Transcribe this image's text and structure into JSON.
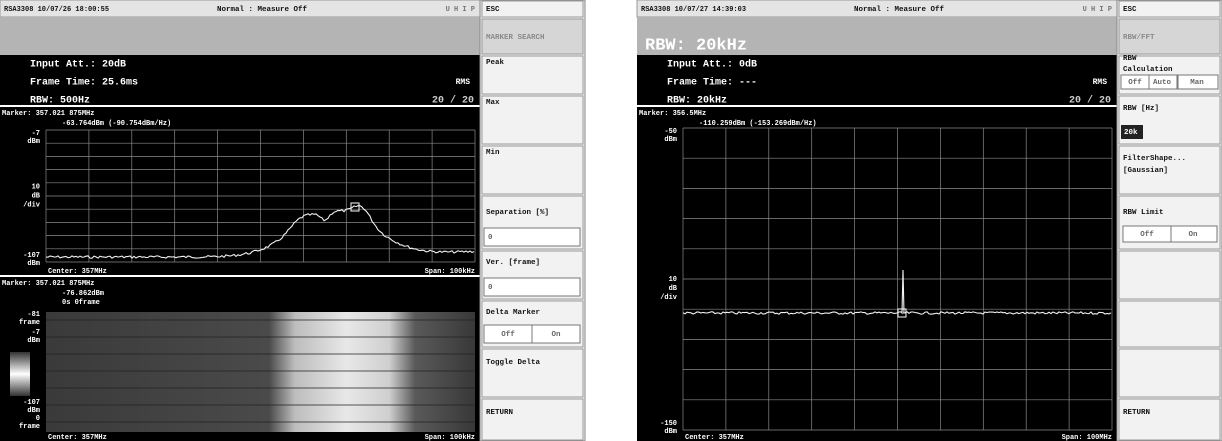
{
  "screens": [
    {
      "status": {
        "timestamp": "RSA3308 10/07/26 18:00:55",
        "mode": "Normal : Measure Off",
        "flags": "U H I P"
      },
      "info": {
        "input_att": "Input Att.: 20dB",
        "frame_time": "Frame Time: 25.6ms",
        "detector": "RMS",
        "rbw": "RBW: 500Hz",
        "count": "20 / 20"
      },
      "plot": {
        "marker": "Marker: 357.021 875MHz",
        "reading": "-63.764dBm (-90.754dBm/Hz)",
        "ref": [
          "-7",
          "dBm"
        ],
        "scale": [
          "10",
          "dB",
          "/div"
        ],
        "bottom": [
          "-107",
          "dBm"
        ],
        "center": "Center: 357MHz",
        "span": "Span: 100kHz"
      },
      "spectrogram": {
        "marker": "Marker: 357.021 875MHz",
        "reading": "-76.862dBm",
        "time": "0s  0frame",
        "top": [
          "-81",
          "frame"
        ],
        "ref": [
          "-7",
          "dBm"
        ],
        "bottom": [
          "-107",
          "dBm"
        ],
        "bottom_frame": [
          "0",
          "frame"
        ],
        "center": "Center: 357MHz",
        "span": "Span: 100kHz"
      },
      "menu": [
        "ESC",
        "MARKER SEARCH",
        "Peak",
        "Max",
        "Min",
        "Separation [%]",
        "0",
        "Ver. [frame]",
        "0",
        "Delta Marker",
        "Off",
        "On",
        "Toggle Delta",
        "RETURN"
      ]
    },
    {
      "status": {
        "timestamp": "RSA3308 10/07/27 14:39:03",
        "mode": "Normal : Measure Off",
        "flags": "U H I P"
      },
      "banner": "RBW: 20kHz",
      "info": {
        "input_att": "Input Att.: 0dB",
        "frame_time": "Frame Time: ---",
        "detector": "RMS",
        "rbw": "RBW: 20kHz",
        "count": "20 / 20"
      },
      "plot": {
        "marker": "Marker: 356.5MHz",
        "reading": "-110.259dBm (-153.269dBm/Hz)",
        "ref": [
          "-50",
          "dBm"
        ],
        "scale": [
          "10",
          "dB",
          "/div"
        ],
        "bottom": [
          "-150",
          "dBm"
        ],
        "center": "Center: 357MHz",
        "span": "Span: 100MHz"
      },
      "menu": [
        "ESC",
        "RBW/FFT",
        "RBW",
        "Calculation",
        "Off",
        "Auto",
        "Man",
        "RBW [Hz]",
        "20k",
        "FilterShape...",
        "[Gaussian]",
        "RBW Limit",
        "Off",
        "On",
        "RETURN"
      ]
    }
  ]
}
